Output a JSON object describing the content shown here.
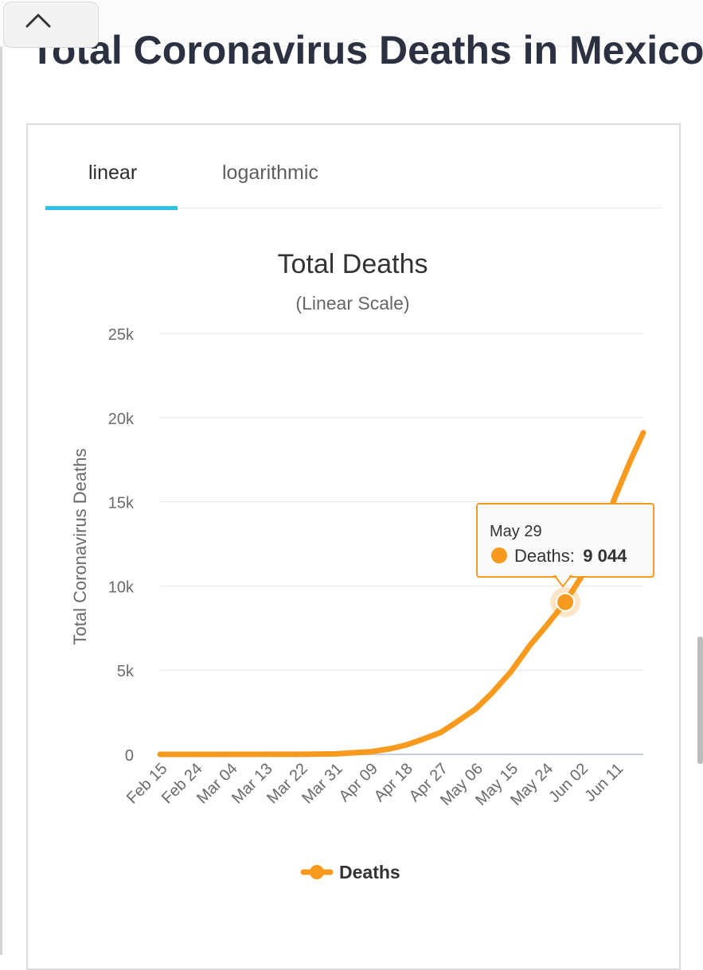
{
  "page": {
    "title": "Total Coronavirus Deaths in Mexico"
  },
  "tabs": {
    "linear": "linear",
    "logarithmic": "logarithmic",
    "active": "linear"
  },
  "colors": {
    "series": "#f79a1e",
    "tab_underline": "#2fc1e8",
    "tooltip_border": "#f79a1e"
  },
  "icons": {
    "collapse": "chevron-up-icon"
  },
  "chart_data": {
    "type": "line",
    "title": "Total Deaths",
    "subtitle": "(Linear Scale)",
    "ylabel": "Total Coronavirus Deaths",
    "xlabel": "",
    "ylim": [
      0,
      25000
    ],
    "y_ticks": [
      0,
      5000,
      10000,
      15000,
      20000,
      25000
    ],
    "y_tick_labels": [
      "0",
      "5k",
      "10k",
      "15k",
      "20k",
      "25k"
    ],
    "x_tick_labels": [
      "Feb 15",
      "Feb 24",
      "Mar 04",
      "Mar 13",
      "Mar 22",
      "Mar 31",
      "Apr 09",
      "Apr 18",
      "Apr 27",
      "May 06",
      "May 15",
      "May 24",
      "Jun 02",
      "Jun 11"
    ],
    "grid": true,
    "legend": {
      "position": "bottom",
      "entries": [
        "Deaths"
      ]
    },
    "series": [
      {
        "name": "Deaths",
        "x": [
          "Feb 15",
          "Mar 22",
          "Mar 31",
          "Apr 09",
          "Apr 14",
          "Apr 18",
          "Apr 22",
          "Apr 27",
          "May 01",
          "May 06",
          "May 10",
          "May 15",
          "May 20",
          "May 24",
          "May 29",
          "Jun 02",
          "Jun 06",
          "Jun 11",
          "Jun 15",
          "Jun 18"
        ],
        "values": [
          0,
          5,
          30,
          150,
          330,
          550,
          860,
          1300,
          1900,
          2700,
          3600,
          4900,
          6500,
          7600,
          9044,
          10500,
          12500,
          15400,
          17600,
          19100
        ]
      }
    ],
    "tooltip": {
      "date": "May 29",
      "label": "Deaths:",
      "value": "9 044"
    }
  }
}
